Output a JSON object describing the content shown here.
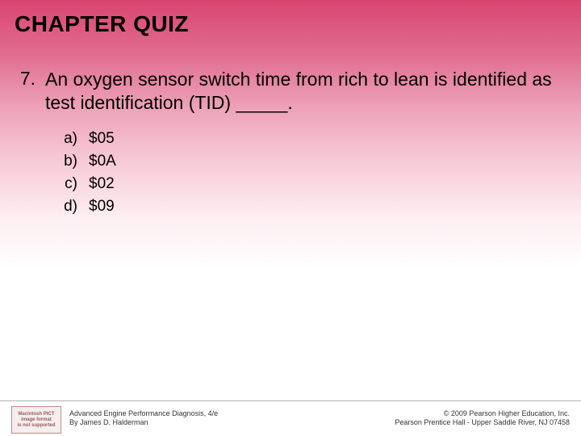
{
  "title": "CHAPTER QUIZ",
  "question": {
    "number": "7.",
    "text": "An oxygen sensor switch time from rich to lean is identified as test identification (TID) _____."
  },
  "options": [
    {
      "label": "a)",
      "text": "$05"
    },
    {
      "label": "b)",
      "text": "$0A"
    },
    {
      "label": "c)",
      "text": "$02"
    },
    {
      "label": "d)",
      "text": "$09"
    }
  ],
  "footer": {
    "icon_lines": [
      "Macintosh PICT",
      "image format",
      "is not supported"
    ],
    "left_line1": "Advanced Engine Performance Diagnosis, 4/e",
    "left_line2": "By James D. Halderman",
    "right_line1": "© 2009 Pearson Higher Education, Inc.",
    "right_line2": "Pearson Prentice Hall - Upper Saddle River, NJ 07458"
  },
  "colors": {
    "gradient_top": "#d9446f",
    "gradient_bottom": "#ffffff",
    "text": "#000000",
    "footer_text": "#333333",
    "rule": "#b0b0b0"
  },
  "typography": {
    "title_fontsize": 28,
    "question_fontsize": 23,
    "option_fontsize": 19,
    "footer_fontsize": 9
  }
}
